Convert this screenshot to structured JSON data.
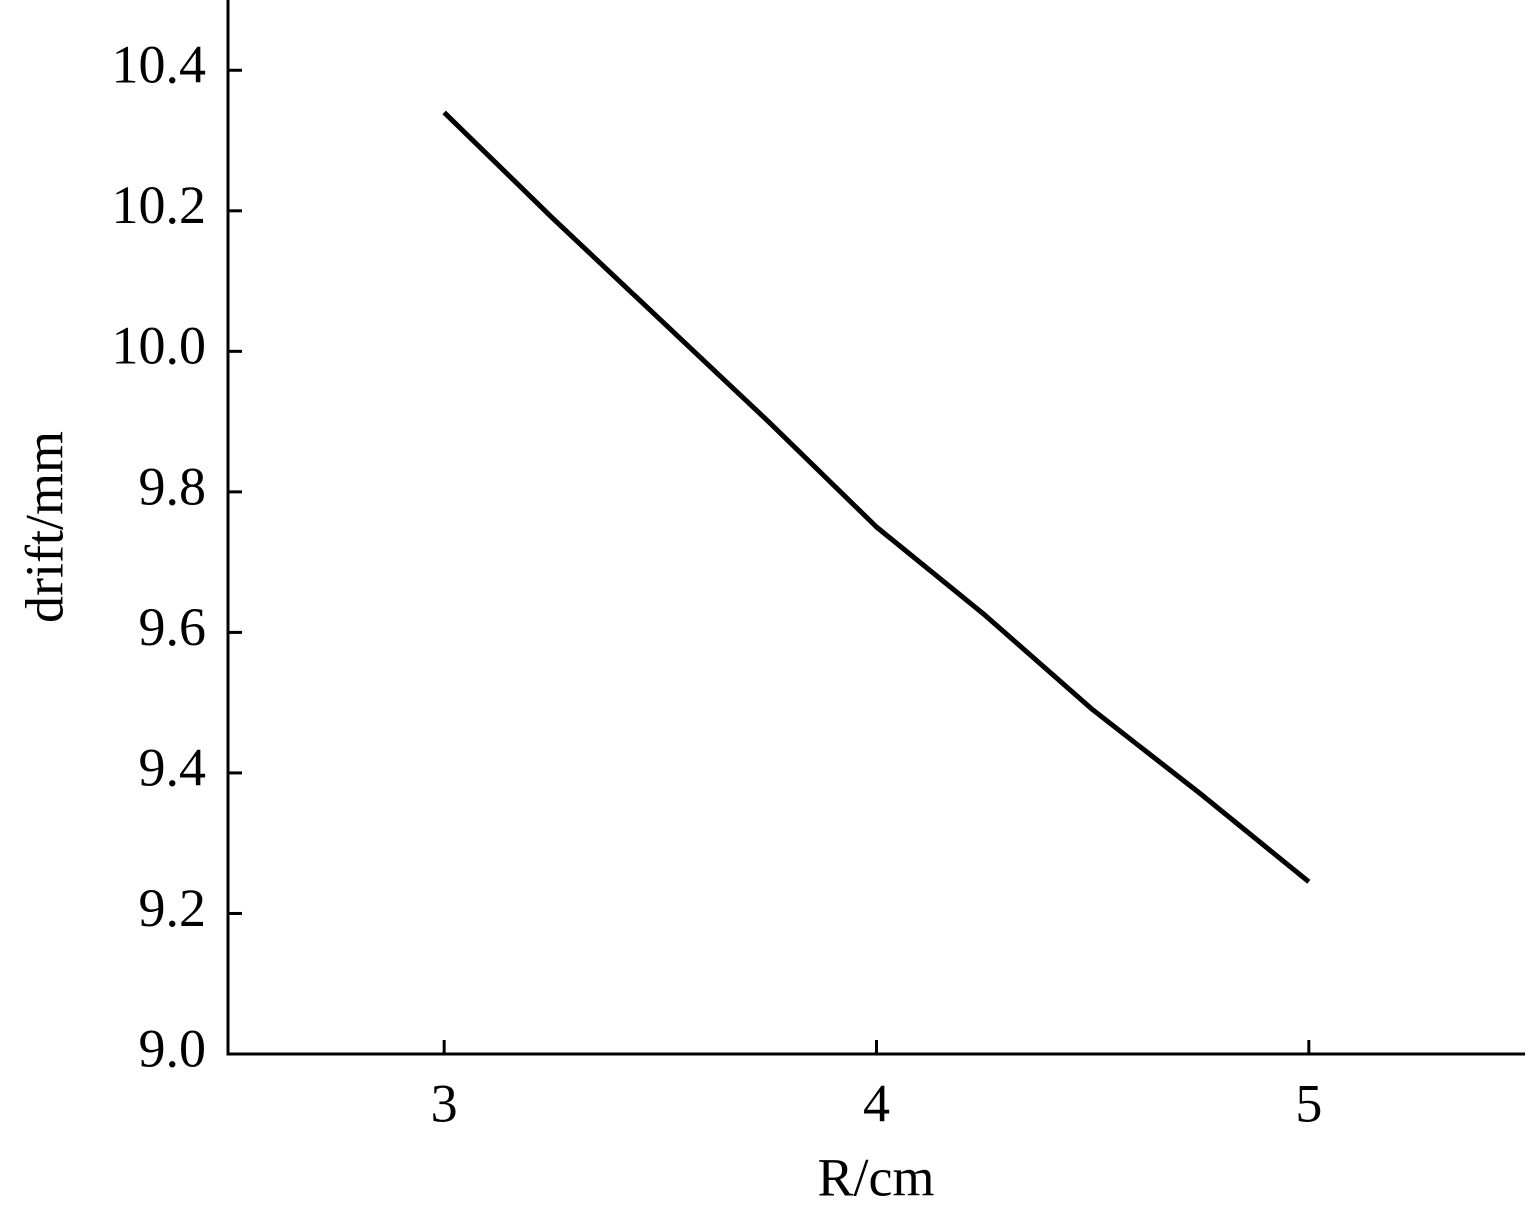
{
  "chart_data": {
    "type": "line",
    "x_label": "R/cm",
    "y_label": "drift/mm",
    "x": [
      3,
      3.25,
      3.5,
      3.75,
      4,
      4.25,
      4.5,
      4.75,
      5
    ],
    "series": [
      {
        "color": "#000000",
        "values": [
          10.34,
          10.19,
          10.045,
          9.9,
          9.75,
          9.625,
          9.49,
          9.37,
          9.245
        ]
      }
    ],
    "xlim": [
      2.5,
      5.5
    ],
    "xticks": [
      3,
      4,
      5
    ],
    "ylim": [
      9.0,
      10.5
    ],
    "yticks": [
      {
        "value": 9,
        "label": "9.0"
      },
      9.2,
      9.4,
      9.6,
      9.8,
      {
        "value": 10,
        "label": "10.0"
      },
      10.2,
      10.4
    ],
    "grid": false
  }
}
